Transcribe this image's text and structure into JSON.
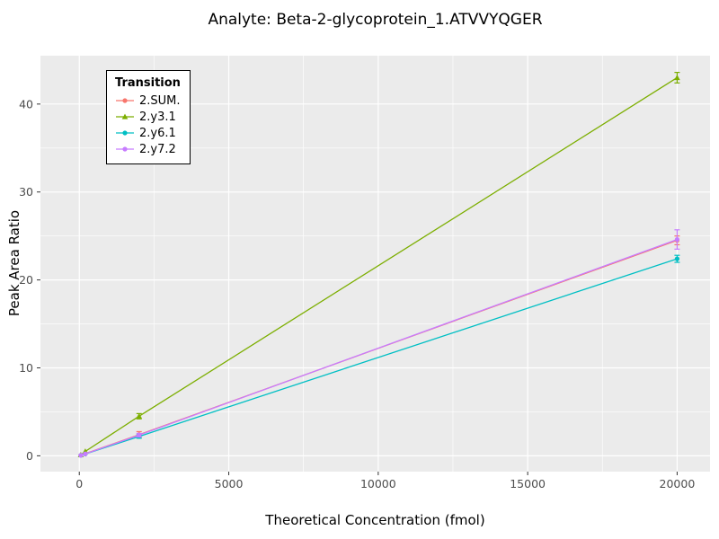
{
  "chart_data": {
    "type": "line",
    "title": "Analyte: Beta-2-glycoprotein_1.ATVVYQGER",
    "xlabel": "Theoretical Concentration (fmol)",
    "ylabel": "Peak Area Ratio",
    "xlim": [
      -1300,
      21100
    ],
    "ylim": [
      -1.8,
      45.5
    ],
    "x_ticks": [
      0,
      5000,
      10000,
      15000,
      20000
    ],
    "x_tick_labels": [
      "0",
      "5000",
      "10000",
      "15000",
      "20000"
    ],
    "y_ticks": [
      0,
      10,
      20,
      30,
      40
    ],
    "y_tick_labels": [
      "0",
      "10",
      "20",
      "30",
      "40"
    ],
    "x_minor": [
      2500,
      7500,
      12500,
      17500
    ],
    "y_minor": [
      5,
      15,
      25,
      35
    ],
    "grid": true,
    "panel_bg": "#EBEBEB",
    "grid_color": "#FFFFFF",
    "tick_label_color": "#4D4D4D",
    "legend": {
      "title": "Transition",
      "position": "top-left"
    },
    "series": [
      {
        "name": "2.SUM.",
        "color": "#F8766D",
        "shape": "circle",
        "points": [
          {
            "x": 50,
            "y": 0.06
          },
          {
            "x": 200,
            "y": 0.25
          },
          {
            "x": 2000,
            "y": 2.4,
            "err": 0.35
          },
          {
            "x": 20000,
            "y": 24.5,
            "err": 0.5
          }
        ]
      },
      {
        "name": "2.y3.1",
        "color": "#7CAE00",
        "shape": "triangle",
        "points": [
          {
            "x": 50,
            "y": 0.1
          },
          {
            "x": 200,
            "y": 0.5
          },
          {
            "x": 2000,
            "y": 4.5,
            "err": 0.3
          },
          {
            "x": 20000,
            "y": 43.0,
            "err": 0.6
          }
        ]
      },
      {
        "name": "2.y6.1",
        "color": "#00BFC4",
        "shape": "circle",
        "points": [
          {
            "x": 50,
            "y": 0.05
          },
          {
            "x": 200,
            "y": 0.2
          },
          {
            "x": 2000,
            "y": 2.2,
            "err": 0.2
          },
          {
            "x": 20000,
            "y": 22.4,
            "err": 0.4
          }
        ]
      },
      {
        "name": "2.y7.2",
        "color": "#C77CFF",
        "shape": "circle",
        "points": [
          {
            "x": 50,
            "y": 0.05
          },
          {
            "x": 200,
            "y": 0.22
          },
          {
            "x": 2000,
            "y": 2.35,
            "err": 0.2
          },
          {
            "x": 20000,
            "y": 24.6,
            "err": 1.1
          }
        ]
      }
    ]
  }
}
